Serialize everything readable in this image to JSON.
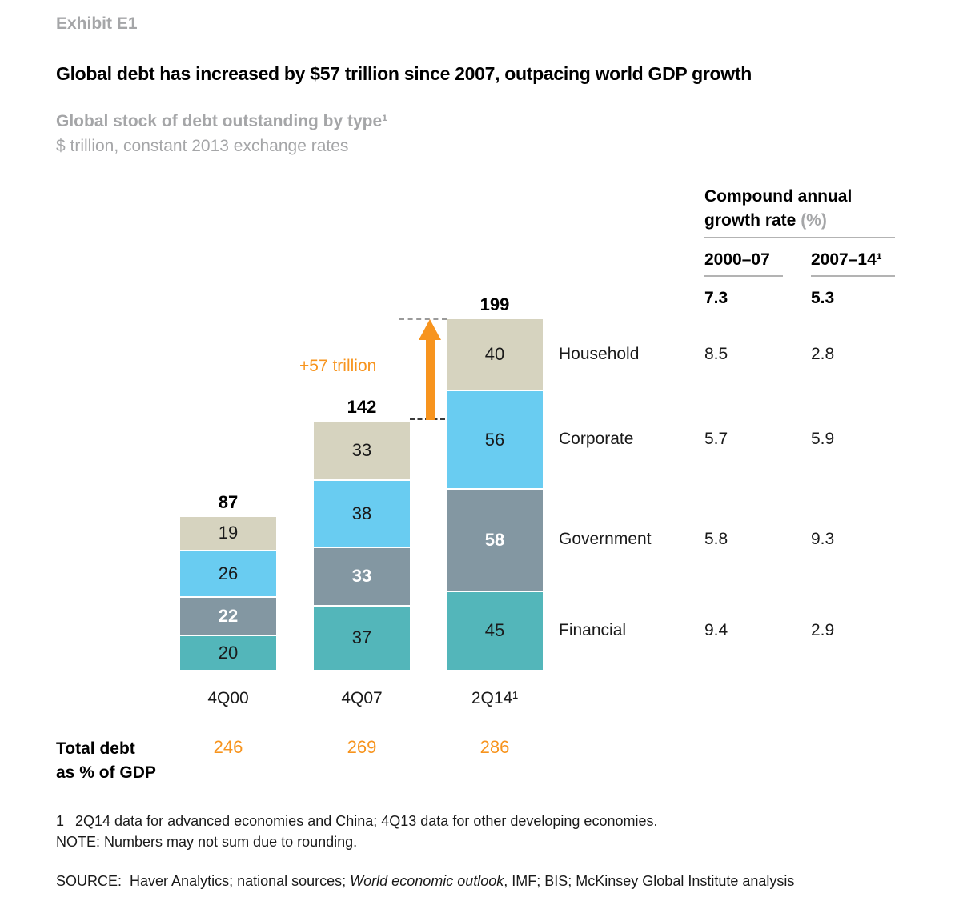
{
  "exhibit_label": "Exhibit E1",
  "title": "Global debt has increased by $57 trillion since 2007, outpacing world GDP growth",
  "subtitle": "Global stock of debt outstanding by type¹",
  "units_line": "$ trillion, constant 2013 exchange rates",
  "chart_data": {
    "type": "bar",
    "stacked": true,
    "title": "Global stock of debt outstanding by type",
    "ylabel": "$ trillion, constant 2013 exchange rates",
    "gridlines": false,
    "categories": [
      "4Q00",
      "4Q07",
      "2Q14¹"
    ],
    "series": [
      {
        "name": "Household",
        "values": [
          19,
          33,
          40
        ],
        "color": "#d6d3bf",
        "value_style": "dark"
      },
      {
        "name": "Corporate",
        "values": [
          26,
          38,
          56
        ],
        "color": "#69ccf1",
        "value_style": "dark"
      },
      {
        "name": "Government",
        "values": [
          22,
          33,
          58
        ],
        "color": "#8397a2",
        "value_style": "white-bold"
      },
      {
        "name": "Financial",
        "values": [
          20,
          37,
          45
        ],
        "color": "#53b6ba",
        "value_style": "dark"
      }
    ],
    "series_order": "top-to-bottom",
    "totals": [
      87,
      142,
      199
    ],
    "annotation": {
      "text": "+57 trillion",
      "color": "#f7941e"
    }
  },
  "cagr_table": {
    "title_line1": "Compound annual",
    "title_line2": "growth rate",
    "title_suffix": "(%)",
    "columns": [
      "2000–07",
      "2007–14¹"
    ],
    "total_values": [
      "7.3",
      "5.3"
    ],
    "rows": [
      {
        "label": "Household",
        "values": [
          "8.5",
          "2.8"
        ]
      },
      {
        "label": "Corporate",
        "values": [
          "5.7",
          "5.9"
        ]
      },
      {
        "label": "Government",
        "values": [
          "5.8",
          "9.3"
        ]
      },
      {
        "label": "Financial",
        "values": [
          "9.4",
          "2.9"
        ]
      }
    ]
  },
  "total_debt": {
    "label_line1": "Total debt",
    "label_line2": "as % of GDP",
    "values": [
      "246",
      "269",
      "286"
    ],
    "color": "#f7941e"
  },
  "footnote": {
    "marker": "1",
    "text": "2Q14 data for advanced economies and China; 4Q13 data for other developing economies."
  },
  "note": "NOTE: Numbers may not sum due to rounding.",
  "source": {
    "prefix": "SOURCE:",
    "before_italic": "Haver Analytics; national sources; ",
    "italic": "World economic outlook",
    "after_italic": ", IMF; BIS; McKinsey Global Institute analysis"
  },
  "colors": {
    "accent_orange": "#f7941e",
    "muted_gray": "#a5a6a8"
  }
}
